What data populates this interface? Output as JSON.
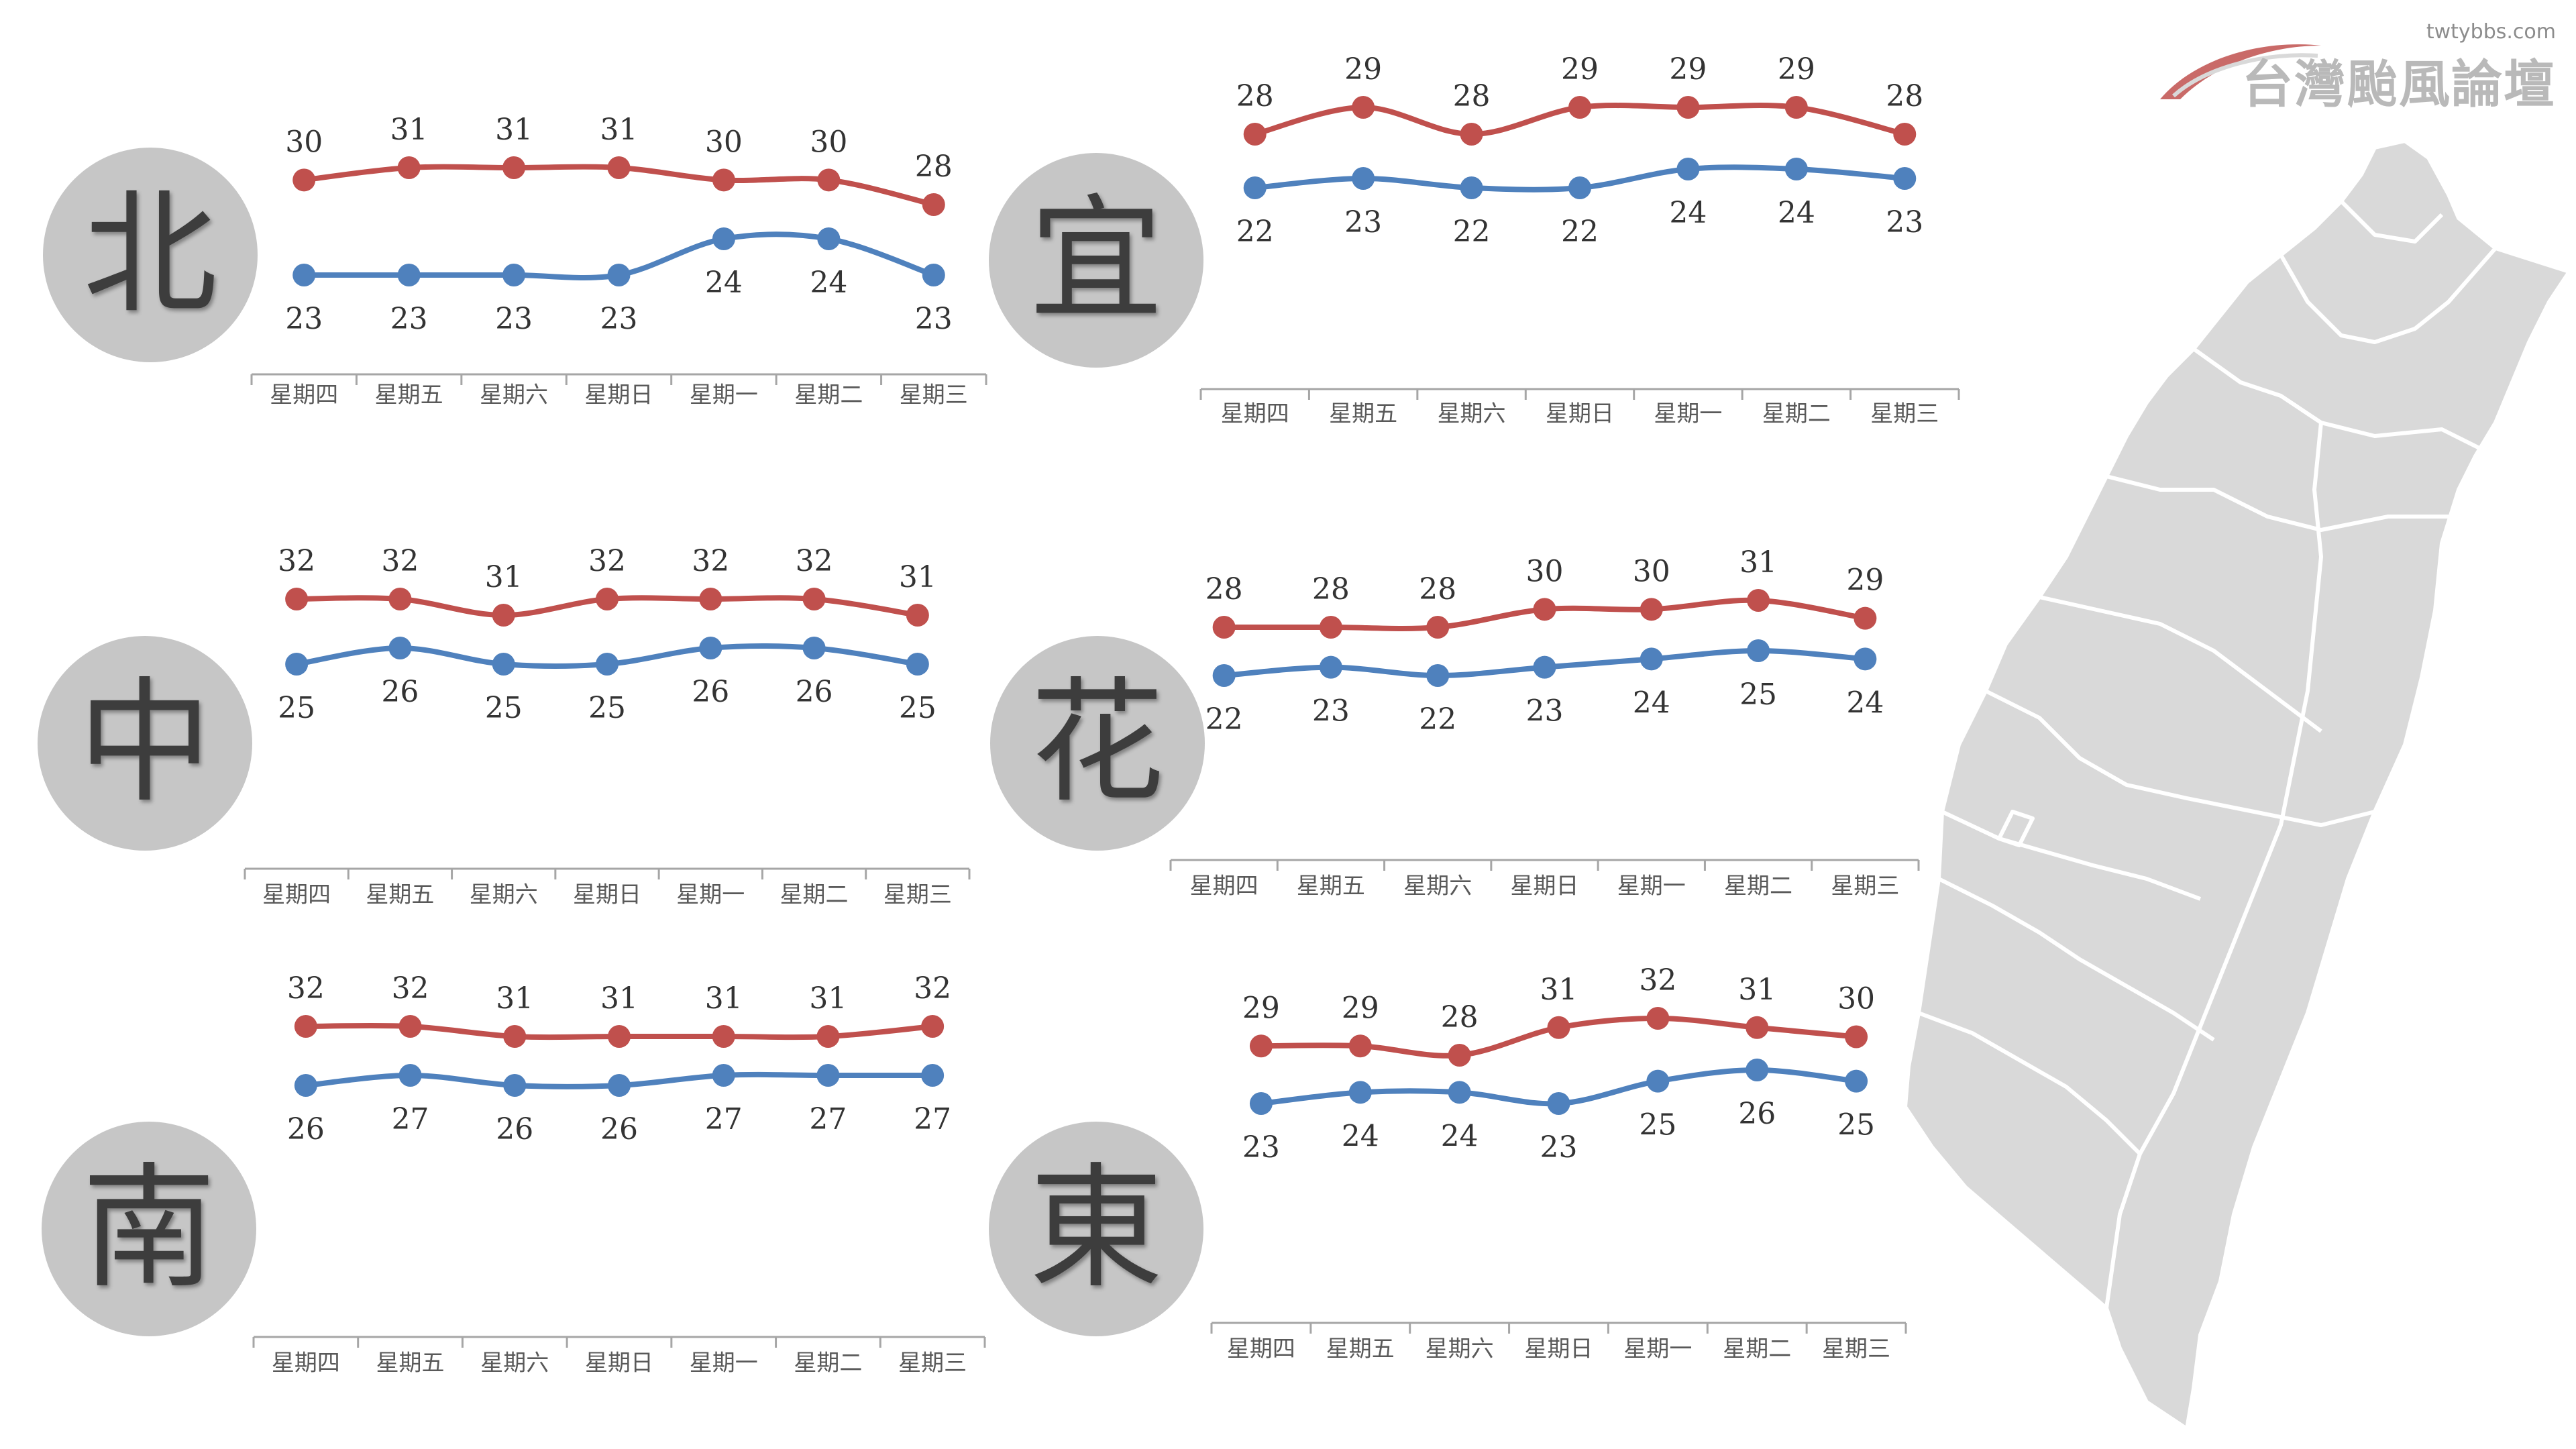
{
  "days": [
    "星期四",
    "星期五",
    "星期六",
    "星期日",
    "星期一",
    "星期二",
    "星期三"
  ],
  "colors": {
    "high": "#c0504d",
    "low": "#4f81bd",
    "circle": "#c6c6c6"
  },
  "logo": {
    "url": "twtybbs.com",
    "text": "台灣颱風論壇"
  },
  "map": {
    "label": ""
  },
  "regions": {
    "north": "北",
    "yilan": "宜",
    "central": "中",
    "hualien": "花",
    "south": "南",
    "east": "東"
  },
  "chart_data": [
    {
      "type": "line",
      "region": "北",
      "categories": [
        "星期四",
        "星期五",
        "星期六",
        "星期日",
        "星期一",
        "星期二",
        "星期三"
      ],
      "series": [
        {
          "values": [
            30,
            31,
            31,
            31,
            30,
            30,
            28
          ]
        },
        {
          "values": [
            23,
            23,
            23,
            23,
            24,
            24,
            23
          ]
        }
      ]
    },
    {
      "type": "line",
      "region": "宜",
      "categories": [
        "星期四",
        "星期五",
        "星期六",
        "星期日",
        "星期一",
        "星期二",
        "星期三"
      ],
      "series": [
        {
          "values": [
            28,
            29,
            28,
            29,
            29,
            29,
            28
          ]
        },
        {
          "values": [
            22,
            23,
            22,
            22,
            24,
            24,
            23
          ]
        }
      ]
    },
    {
      "type": "line",
      "region": "中",
      "categories": [
        "星期四",
        "星期五",
        "星期六",
        "星期日",
        "星期一",
        "星期二",
        "星期三"
      ],
      "series": [
        {
          "values": [
            32,
            32,
            31,
            32,
            32,
            32,
            31
          ]
        },
        {
          "values": [
            25,
            26,
            25,
            25,
            26,
            26,
            25
          ]
        }
      ]
    },
    {
      "type": "line",
      "region": "花",
      "categories": [
        "星期四",
        "星期五",
        "星期六",
        "星期日",
        "星期一",
        "星期二",
        "星期三"
      ],
      "series": [
        {
          "values": [
            28,
            28,
            28,
            30,
            30,
            31,
            29
          ]
        },
        {
          "values": [
            22,
            23,
            22,
            23,
            24,
            25,
            24
          ]
        }
      ]
    },
    {
      "type": "line",
      "region": "南",
      "categories": [
        "星期四",
        "星期五",
        "星期六",
        "星期日",
        "星期一",
        "星期二",
        "星期三"
      ],
      "series": [
        {
          "values": [
            32,
            32,
            31,
            31,
            31,
            31,
            32
          ]
        },
        {
          "values": [
            26,
            27,
            26,
            26,
            27,
            27,
            27
          ]
        }
      ]
    },
    {
      "type": "line",
      "region": "東",
      "categories": [
        "星期四",
        "星期五",
        "星期六",
        "星期日",
        "星期一",
        "星期二",
        "星期三"
      ],
      "series": [
        {
          "values": [
            29,
            29,
            28,
            31,
            32,
            31,
            30
          ]
        },
        {
          "values": [
            23,
            24,
            24,
            23,
            25,
            26,
            25
          ]
        }
      ]
    }
  ]
}
